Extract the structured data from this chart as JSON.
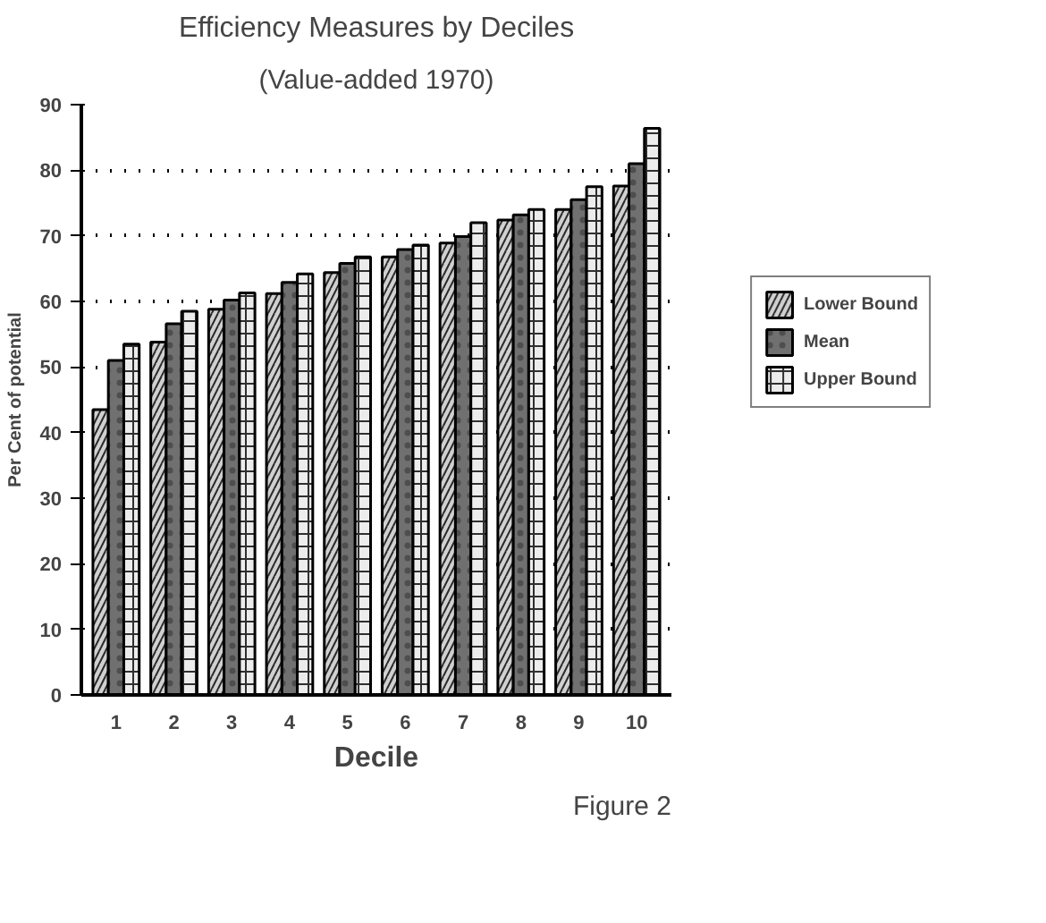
{
  "chart_data": {
    "type": "bar",
    "title": "Efficiency Measures by Deciles",
    "subtitle": "(Value-added 1970)",
    "xlabel": "Decile",
    "ylabel": "Per Cent of potential",
    "categories": [
      "1",
      "2",
      "3",
      "4",
      "5",
      "6",
      "7",
      "8",
      "9",
      "10"
    ],
    "series": [
      {
        "name": "Lower Bound",
        "color": "#d0d0d0",
        "values": [
          43.5,
          53.8,
          58.8,
          61.2,
          64.4,
          66.8,
          68.9,
          72.4,
          74.0,
          77.6
        ]
      },
      {
        "name": "Mean",
        "color": "#707070",
        "values": [
          51.0,
          56.6,
          60.2,
          62.9,
          65.8,
          67.9,
          69.9,
          73.2,
          75.5,
          81.0
        ]
      },
      {
        "name": "Upper Bound",
        "color": "#ececec",
        "values": [
          53.5,
          58.5,
          61.3,
          64.2,
          66.8,
          68.6,
          72.0,
          74.0,
          77.5,
          86.4
        ]
      }
    ],
    "ylim": [
      0,
      90
    ],
    "yticks": [
      0,
      10,
      20,
      30,
      40,
      50,
      60,
      70,
      80,
      90
    ],
    "grid": "y",
    "legend": "right",
    "annotations": [
      "Figure 2"
    ]
  }
}
